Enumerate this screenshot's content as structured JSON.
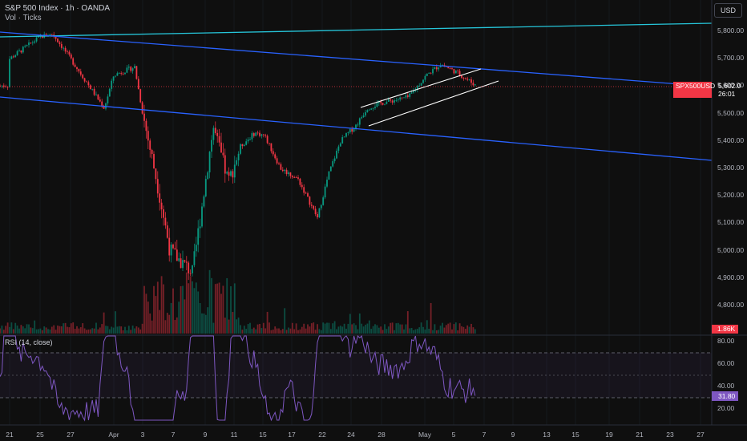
{
  "header": {
    "title": "S&P 500 Index · 1h · OANDA",
    "subtitle": "Vol · Ticks",
    "currency_button": "USD"
  },
  "rsi_panel": {
    "title": "RSI (14, close)",
    "ticks": [
      "80.00",
      "60.00",
      "40.00",
      "20.00"
    ],
    "current_value": "31.80",
    "upper_band": 70,
    "lower_band": 30
  },
  "price_axis": {
    "ticks": [
      "5,800.00",
      "5,700.00",
      "5,600.00",
      "5,500.00",
      "5,400.00",
      "5,300.00",
      "5,200.00",
      "5,100.00",
      "5,000.00",
      "4,900.00",
      "4,800.00"
    ]
  },
  "time_axis": {
    "ticks": [
      "21",
      "25",
      "27",
      "Apr",
      "3",
      "7",
      "9",
      "11",
      "15",
      "17",
      "22",
      "24",
      "28",
      "May",
      "5",
      "7",
      "9",
      "13",
      "15",
      "19",
      "21",
      "23",
      "27"
    ]
  },
  "tags": {
    "symbol": "SPX500USD",
    "price": "5,602.0",
    "countdown": "26:01",
    "volume": "1.86K"
  },
  "colors": {
    "background": "#0f0f0f",
    "up": "#089981",
    "down": "#f23645",
    "trend_blue": "#2962ff",
    "trend_teal": "#26c6da",
    "channel_white": "#ffffff",
    "rsi_line": "#7e57c2"
  },
  "chart_data": {
    "type": "candlestick",
    "symbol": "SPX500USD",
    "interval": "1h",
    "ylim": [
      4740,
      5870
    ],
    "approx_close_path": [
      {
        "date": "Mar 21",
        "close": 5700
      },
      {
        "date": "Mar 25",
        "close": 5780
      },
      {
        "date": "Mar 26",
        "close": 5790
      },
      {
        "date": "Mar 27",
        "close": 5700
      },
      {
        "date": "Mar 31",
        "close": 5520
      },
      {
        "date": "Apr 1",
        "close": 5640
      },
      {
        "date": "Apr 2",
        "close": 5670
      },
      {
        "date": "Apr 3",
        "close": 5500
      },
      {
        "date": "Apr 4",
        "close": 5250
      },
      {
        "date": "Apr 7",
        "close": 5000
      },
      {
        "date": "Apr 8",
        "close": 4920
      },
      {
        "date": "Apr 9",
        "close": 5450
      },
      {
        "date": "Apr 10",
        "close": 5250
      },
      {
        "date": "Apr 11",
        "close": 5380
      },
      {
        "date": "Apr 14",
        "close": 5430
      },
      {
        "date": "Apr 15",
        "close": 5420
      },
      {
        "date": "Apr 16",
        "close": 5300
      },
      {
        "date": "Apr 17",
        "close": 5260
      },
      {
        "date": "Apr 21",
        "close": 5120
      },
      {
        "date": "Apr 22",
        "close": 5280
      },
      {
        "date": "Apr 23",
        "close": 5400
      },
      {
        "date": "Apr 24",
        "close": 5460
      },
      {
        "date": "Apr 25",
        "close": 5520
      },
      {
        "date": "Apr 28",
        "close": 5540
      },
      {
        "date": "Apr 30",
        "close": 5560
      },
      {
        "date": "May 1",
        "close": 5640
      },
      {
        "date": "May 2",
        "close": 5680
      },
      {
        "date": "May 5",
        "close": 5650
      },
      {
        "date": "May 6",
        "close": 5602
      }
    ],
    "last_price": 5602.0,
    "rsi": {
      "period": 14,
      "last": 31.8,
      "range": [
        10,
        85
      ]
    }
  }
}
